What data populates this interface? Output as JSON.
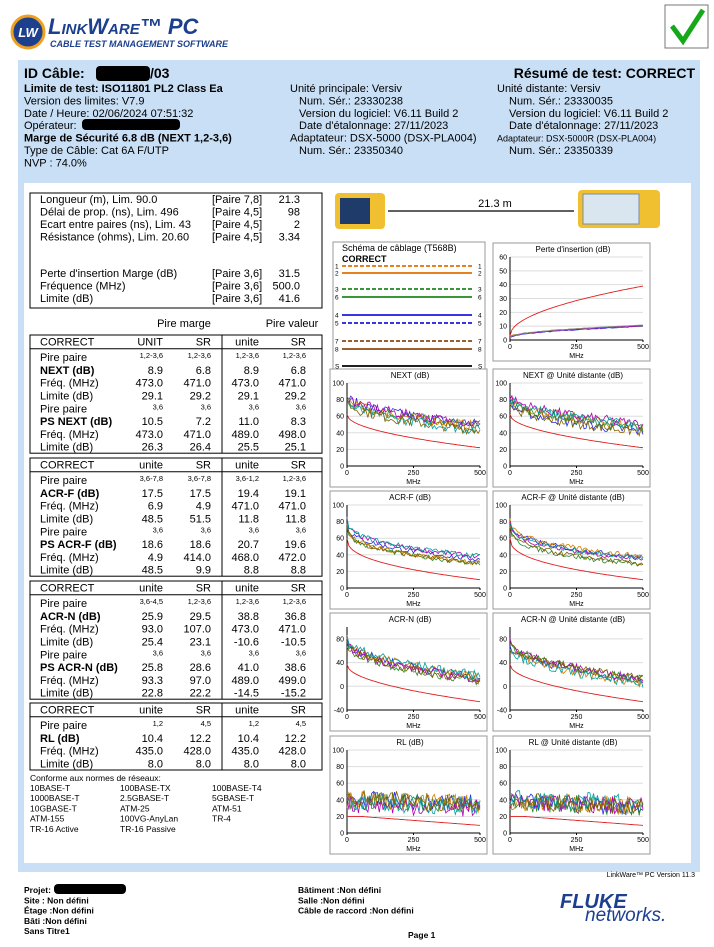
{
  "header": {
    "logo_badge": "LW",
    "product": "LinkWare™ PC",
    "subtitle": "CABLE TEST MANAGEMENT SOFTWARE"
  },
  "info": {
    "cable_id_label": "ID Câble:",
    "cable_id_suffix": "/03",
    "summary": "Résumé de test: CORRECT",
    "left": [
      "Limite de test: ISO11801 PL2 Class Ea",
      "Version des limites: V7.9",
      "Date / Heure: 02/06/2024  07:51:32",
      "Opérateur:",
      "Marge de Sécurité 6.8 dB (NEXT 1,2-3,6)",
      "Type de Câble: Cat 6A F/UTP",
      "NVP : 74.0%"
    ],
    "main_unit": [
      "Unité principale: Versiv",
      "Num. Sér.: 23330238",
      "Version du logiciel: V6.11 Build 2",
      "Date d'étalonnage: 27/11/2023",
      "Adaptateur: DSX-5000 (DSX-PLA004)",
      "Num. Sér.: 23350340"
    ],
    "remote_unit": [
      "Unité distante: Versiv",
      "Num. Sér.: 23330035",
      "Version du logiciel: V6.11 Build 2",
      "Date d'étalonnage: 27/11/2023",
      "Adaptateur: DSX-5000R (DSX-PLA004)",
      "Num. Sér.: 23350339"
    ]
  },
  "summary_rows": [
    [
      "Longueur (m), Lim. 90.0",
      "[Paire 7,8]",
      "21.3"
    ],
    [
      "Délai de prop. (ns), Lim. 496",
      "[Paire 4,5]",
      "98"
    ],
    [
      "Ecart entre paires (ns), Lim. 43",
      "[Paire 4,5]",
      "2"
    ],
    [
      "Résistance (ohms), Lim. 20.60",
      "[Paire 4,5]",
      "3.34"
    ],
    [
      "Perte d'insertion Marge (dB)",
      "[Paire 3,6]",
      "31.5"
    ],
    [
      "Fréquence (MHz)",
      "[Paire 3,6]",
      "500.0"
    ],
    [
      "Limite (dB)",
      "[Paire 3,6]",
      "41.6"
    ]
  ],
  "column_groups": [
    "Pire marge",
    "Pire valeur"
  ],
  "sections": [
    {
      "header": [
        "CORRECT",
        "UNIT",
        "SR",
        "unite",
        "SR"
      ],
      "rows": [
        [
          "Pire paire",
          "1,2-3,6",
          "1,2-3,6",
          "1,2-3,6",
          "1,2-3,6"
        ],
        [
          "NEXT (dB)",
          "8.9",
          "6.8",
          "8.9",
          "6.8"
        ],
        [
          "Fréq. (MHz)",
          "473.0",
          "471.0",
          "473.0",
          "471.0"
        ],
        [
          "Limite (dB)",
          "29.1",
          "29.2",
          "29.1",
          "29.2"
        ],
        [
          "Pire paire",
          "3,6",
          "3,6",
          "3,6",
          "3,6"
        ],
        [
          "PS NEXT (dB)",
          "10.5",
          "7.2",
          "11.0",
          "8.3"
        ],
        [
          "Fréq. (MHz)",
          "473.0",
          "471.0",
          "489.0",
          "498.0"
        ],
        [
          "Limite (dB)",
          "26.3",
          "26.4",
          "25.5",
          "25.1"
        ]
      ]
    },
    {
      "header": [
        "CORRECT",
        "unite",
        "SR",
        "unite",
        "SR"
      ],
      "rows": [
        [
          "Pire paire",
          "3,6-7,8",
          "3,6-7,8",
          "3,6-1,2",
          "1,2-3,6"
        ],
        [
          "ACR-F (dB)",
          "17.5",
          "17.5",
          "19.4",
          "19.1"
        ],
        [
          "Fréq. (MHz)",
          "6.9",
          "4.9",
          "471.0",
          "471.0"
        ],
        [
          "Limite (dB)",
          "48.5",
          "51.5",
          "11.8",
          "11.8"
        ],
        [
          "Pire paire",
          "3,6",
          "3,6",
          "3,6",
          "3,6"
        ],
        [
          "PS ACR-F (dB)",
          "18.6",
          "18.6",
          "20.7",
          "19.6"
        ],
        [
          "Fréq. (MHz)",
          "4.9",
          "414.0",
          "468.0",
          "472.0"
        ],
        [
          "Limite (dB)",
          "48.5",
          "9.9",
          "8.8",
          "8.8"
        ]
      ]
    },
    {
      "header": [
        "CORRECT",
        "unite",
        "SR",
        "unite",
        "SR"
      ],
      "rows": [
        [
          "Pire paire",
          "3,6-4,5",
          "1,2-3,6",
          "1,2-3,6",
          "1,2-3,6"
        ],
        [
          "ACR-N (dB)",
          "25.9",
          "29.5",
          "38.8",
          "36.8"
        ],
        [
          "Fréq. (MHz)",
          "93.0",
          "107.0",
          "473.0",
          "471.0"
        ],
        [
          "Limite (dB)",
          "25.4",
          "23.1",
          "-10.6",
          "-10.5"
        ],
        [
          "Pire paire",
          "3,6",
          "3,6",
          "3,6",
          "3,6"
        ],
        [
          "PS ACR-N (dB)",
          "25.8",
          "28.6",
          "41.0",
          "38.6"
        ],
        [
          "Fréq. (MHz)",
          "93.3",
          "97.0",
          "489.0",
          "499.0"
        ],
        [
          "Limite (dB)",
          "22.8",
          "22.2",
          "-14.5",
          "-15.2"
        ]
      ]
    },
    {
      "header": [
        "CORRECT",
        "unite",
        "SR",
        "unite",
        "SR"
      ],
      "rows": [
        [
          "Pire paire",
          "1,2",
          "4,5",
          "1,2",
          "4,5"
        ],
        [
          "RL (dB)",
          "10.4",
          "12.2",
          "10.4",
          "12.2"
        ],
        [
          "Fréq. (MHz)",
          "435.0",
          "428.0",
          "435.0",
          "428.0"
        ],
        [
          "Limite (dB)",
          "8.0",
          "8.0",
          "8.0",
          "8.0"
        ]
      ]
    }
  ],
  "standards": {
    "title": "Conforme aux normes de réseaux:",
    "items": [
      "10BASE-T",
      "100BASE-TX",
      "100BASE-T4",
      "1000BASE-T",
      "2.5GBASE-T",
      "5GBASE-T",
      "10GBASE-T",
      "ATM-25",
      "ATM-51",
      "ATM-155",
      "100VG-AnyLan",
      "TR-4",
      "TR-16 Active",
      "TR-16 Passive"
    ]
  },
  "length_display": "21.3 m",
  "wiremap": {
    "title": "Schéma de câblage (T568B)",
    "status": "CORRECT",
    "pins": [
      "1",
      "2",
      "3",
      "6",
      "4",
      "5",
      "7",
      "8",
      "S"
    ]
  },
  "charts": [
    {
      "title": "Perte d'insertion (dB)",
      "xlim": [
        0,
        500
      ],
      "xticks": [
        0,
        250,
        500
      ],
      "ylim": [
        0,
        60
      ],
      "yticks": [
        0,
        10,
        20,
        30,
        40,
        50,
        60
      ],
      "xlabel": "MHz"
    },
    {
      "title": "NEXT (dB)",
      "xlim": [
        0,
        500
      ],
      "xticks": [
        0,
        250,
        500
      ],
      "ylim": [
        0,
        100
      ],
      "yticks": [
        0,
        20,
        40,
        60,
        80,
        100
      ],
      "xlabel": "MHz"
    },
    {
      "title": "NEXT @ Unité distante (dB)",
      "xlim": [
        0,
        500
      ],
      "xticks": [
        0,
        250,
        500
      ],
      "ylim": [
        0,
        100
      ],
      "yticks": [
        0,
        20,
        40,
        60,
        80,
        100
      ],
      "xlabel": "MHz"
    },
    {
      "title": "ACR-F (dB)",
      "xlim": [
        0,
        500
      ],
      "xticks": [
        0,
        250,
        500
      ],
      "ylim": [
        0,
        100
      ],
      "yticks": [
        0,
        20,
        40,
        60,
        80,
        100
      ],
      "xlabel": "MHz"
    },
    {
      "title": "ACR-F @ Unité distante (dB)",
      "xlim": [
        0,
        500
      ],
      "xticks": [
        0,
        250,
        500
      ],
      "ylim": [
        0,
        100
      ],
      "yticks": [
        0,
        20,
        40,
        60,
        80,
        100
      ],
      "xlabel": "MHz"
    },
    {
      "title": "ACR-N (dB)",
      "xlim": [
        0,
        500
      ],
      "xticks": [
        0,
        250,
        500
      ],
      "ylim": [
        -40,
        100
      ],
      "yticks": [
        -40,
        0,
        40,
        80
      ],
      "xlabel": "MHz"
    },
    {
      "title": "ACR-N @ Unité distante (dB)",
      "xlim": [
        0,
        500
      ],
      "xticks": [
        0,
        250,
        500
      ],
      "ylim": [
        -40,
        100
      ],
      "yticks": [
        -40,
        0,
        40,
        80
      ],
      "xlabel": "MHz"
    },
    {
      "title": "RL (dB)",
      "xlim": [
        0,
        500
      ],
      "xticks": [
        0,
        250,
        500
      ],
      "ylim": [
        0,
        100
      ],
      "yticks": [
        0,
        20,
        40,
        60,
        80,
        100
      ],
      "xlabel": "MHz"
    },
    {
      "title": "RL @ Unité distante (dB)",
      "xlim": [
        0,
        500
      ],
      "xticks": [
        0,
        250,
        500
      ],
      "ylim": [
        0,
        100
      ],
      "yticks": [
        0,
        20,
        40,
        60,
        80,
        100
      ],
      "xlabel": "MHz"
    }
  ],
  "footer": {
    "version": "LinkWare™ PC Version 11.3",
    "left": [
      "Projet:",
      "Site : Non défini",
      "Étage :Non défini",
      "Bâti :Non défini",
      "Sans Titre1"
    ],
    "middle": [
      "Bâtiment :Non défini",
      "Salle :Non défini",
      "Câble de raccord :Non défini"
    ],
    "page": "Page 1",
    "brand": "FLUKE",
    "brand_sub": "networks."
  }
}
